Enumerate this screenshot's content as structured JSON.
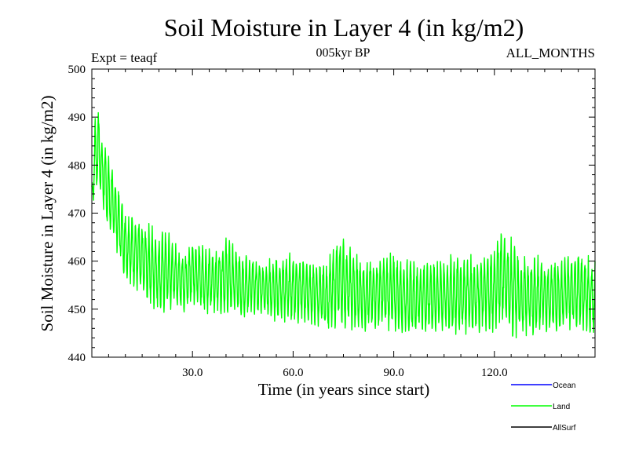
{
  "chart_data": {
    "type": "line",
    "title": "Soil Moisture in Layer 4 (in kg/m2)",
    "subtitle_left": "Expt = teaqf",
    "subtitle_center": "005kyr BP",
    "subtitle_right": "ALL_MONTHS",
    "xlabel": "Time (in years since start)",
    "ylabel": "Soil Moisture in Layer 4 (in kg/m2)",
    "xlim": [
      0,
      150
    ],
    "ylim": [
      440,
      500
    ],
    "x_ticks": [
      30,
      60,
      90,
      120
    ],
    "x_tick_labels": [
      "30.0",
      "60.0",
      "90.0",
      "120.0"
    ],
    "y_ticks": [
      440,
      450,
      460,
      470,
      480,
      490,
      500
    ],
    "y_tick_labels": [
      "440",
      "450",
      "460",
      "470",
      "480",
      "490",
      "500"
    ],
    "legend_position": "bottom-right",
    "series": [
      {
        "name": "Ocean",
        "color": "#0000ff",
        "values": []
      },
      {
        "name": "Land",
        "color": "#00ff00",
        "points_per_year": 12,
        "annual_envelope": {
          "years": [
            0,
            1,
            2,
            3,
            4,
            5,
            6,
            8,
            10,
            12,
            15,
            18,
            20,
            22,
            25,
            28,
            30,
            33,
            36,
            40,
            45,
            50,
            55,
            60,
            65,
            70,
            74,
            78,
            82,
            86,
            90,
            95,
            100,
            105,
            110,
            115,
            120,
            122,
            125,
            128,
            132,
            136,
            140,
            145,
            150
          ],
          "max": [
            476,
            491,
            492,
            486,
            485,
            482,
            481,
            475,
            471,
            470,
            468,
            468,
            466,
            467,
            464,
            462,
            466,
            464,
            462,
            465,
            462,
            460,
            461,
            462,
            460,
            460,
            466,
            462,
            461,
            461,
            462,
            460,
            460,
            461,
            462,
            461,
            463,
            468,
            465,
            461,
            462,
            460,
            461,
            463,
            460
          ],
          "min": [
            471,
            474,
            475,
            472,
            469,
            466,
            464,
            461,
            456,
            455,
            452,
            450,
            449,
            449,
            450,
            449,
            451,
            449,
            449,
            449,
            448,
            449,
            447,
            447,
            447,
            445,
            446,
            445,
            445,
            446,
            445,
            445,
            445,
            445,
            444,
            445,
            445,
            447,
            443,
            444,
            444,
            445,
            445,
            446,
            444
          ]
        }
      },
      {
        "name": "AllSurf",
        "color": "#000000",
        "values": []
      }
    ]
  }
}
